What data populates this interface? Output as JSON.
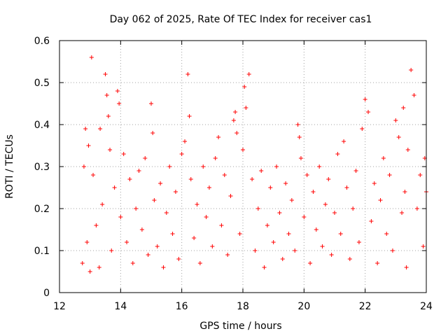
{
  "chart_data": {
    "type": "scatter",
    "title": "Day 062 of 2025, Rate Of TEC Index for receiver cas1",
    "xlabel": "GPS time / hours",
    "ylabel": "ROTI / TECUs",
    "xlim": [
      12,
      24
    ],
    "ylim": [
      0,
      0.6
    ],
    "xticks": [
      12,
      14,
      16,
      18,
      20,
      22,
      24
    ],
    "yticks": [
      0,
      0.1,
      0.2,
      0.3,
      0.4,
      0.5,
      0.6
    ],
    "xtick_labels": [
      "12",
      "14",
      "16",
      "18",
      "20",
      "22",
      "24"
    ],
    "ytick_labels": [
      "0",
      "0.1",
      "0.2",
      "0.3",
      "0.4",
      "0.5",
      "0.6"
    ],
    "grid": true,
    "marker": "+",
    "color": "#ff0000",
    "series": [
      {
        "name": "cas1",
        "x": [
          12.75,
          12.8,
          12.85,
          12.9,
          12.95,
          13.0,
          13.05,
          13.1,
          13.2,
          13.3,
          13.33,
          13.4,
          13.5,
          13.55,
          13.6,
          13.65,
          13.7,
          13.8,
          13.9,
          13.95,
          14.0,
          14.1,
          14.2,
          14.3,
          14.4,
          14.5,
          14.6,
          14.7,
          14.8,
          14.9,
          15.0,
          15.05,
          15.1,
          15.2,
          15.3,
          15.4,
          15.5,
          15.6,
          15.7,
          15.8,
          15.9,
          16.0,
          16.1,
          16.2,
          16.25,
          16.3,
          16.4,
          16.5,
          16.6,
          16.7,
          16.8,
          16.9,
          17.0,
          17.1,
          17.2,
          17.3,
          17.4,
          17.5,
          17.6,
          17.7,
          17.75,
          17.8,
          17.9,
          18.0,
          18.05,
          18.1,
          18.2,
          18.3,
          18.4,
          18.5,
          18.6,
          18.7,
          18.8,
          18.9,
          19.0,
          19.1,
          19.2,
          19.3,
          19.4,
          19.5,
          19.6,
          19.7,
          19.8,
          19.85,
          19.9,
          20.0,
          20.1,
          20.2,
          20.3,
          20.4,
          20.5,
          20.6,
          20.7,
          20.8,
          20.9,
          21.0,
          21.1,
          21.2,
          21.3,
          21.4,
          21.5,
          21.6,
          21.7,
          21.8,
          21.9,
          22.0,
          22.1,
          22.2,
          22.3,
          22.4,
          22.5,
          22.6,
          22.7,
          22.8,
          22.9,
          23.0,
          23.1,
          23.2,
          23.25,
          23.3,
          23.35,
          23.4,
          23.5,
          23.6,
          23.7,
          23.8,
          23.9,
          23.95,
          24.0
        ],
        "y": [
          0.07,
          0.3,
          0.39,
          0.12,
          0.35,
          0.05,
          0.56,
          0.28,
          0.16,
          0.06,
          0.39,
          0.21,
          0.52,
          0.47,
          0.42,
          0.34,
          0.1,
          0.25,
          0.48,
          0.45,
          0.18,
          0.33,
          0.12,
          0.27,
          0.07,
          0.2,
          0.29,
          0.15,
          0.32,
          0.09,
          0.45,
          0.38,
          0.22,
          0.11,
          0.26,
          0.06,
          0.19,
          0.3,
          0.14,
          0.24,
          0.08,
          0.33,
          0.36,
          0.52,
          0.42,
          0.27,
          0.13,
          0.21,
          0.07,
          0.3,
          0.18,
          0.25,
          0.11,
          0.32,
          0.37,
          0.16,
          0.28,
          0.09,
          0.23,
          0.41,
          0.43,
          0.38,
          0.14,
          0.34,
          0.49,
          0.44,
          0.52,
          0.27,
          0.1,
          0.2,
          0.29,
          0.06,
          0.16,
          0.25,
          0.12,
          0.3,
          0.19,
          0.08,
          0.26,
          0.14,
          0.22,
          0.1,
          0.4,
          0.37,
          0.32,
          0.18,
          0.28,
          0.07,
          0.24,
          0.15,
          0.3,
          0.11,
          0.21,
          0.27,
          0.09,
          0.19,
          0.33,
          0.14,
          0.36,
          0.25,
          0.08,
          0.2,
          0.29,
          0.12,
          0.39,
          0.46,
          0.43,
          0.17,
          0.26,
          0.07,
          0.22,
          0.32,
          0.14,
          0.28,
          0.1,
          0.41,
          0.37,
          0.19,
          0.44,
          0.24,
          0.06,
          0.34,
          0.53,
          0.47,
          0.2,
          0.28,
          0.11,
          0.32,
          0.24
        ]
      }
    ]
  }
}
